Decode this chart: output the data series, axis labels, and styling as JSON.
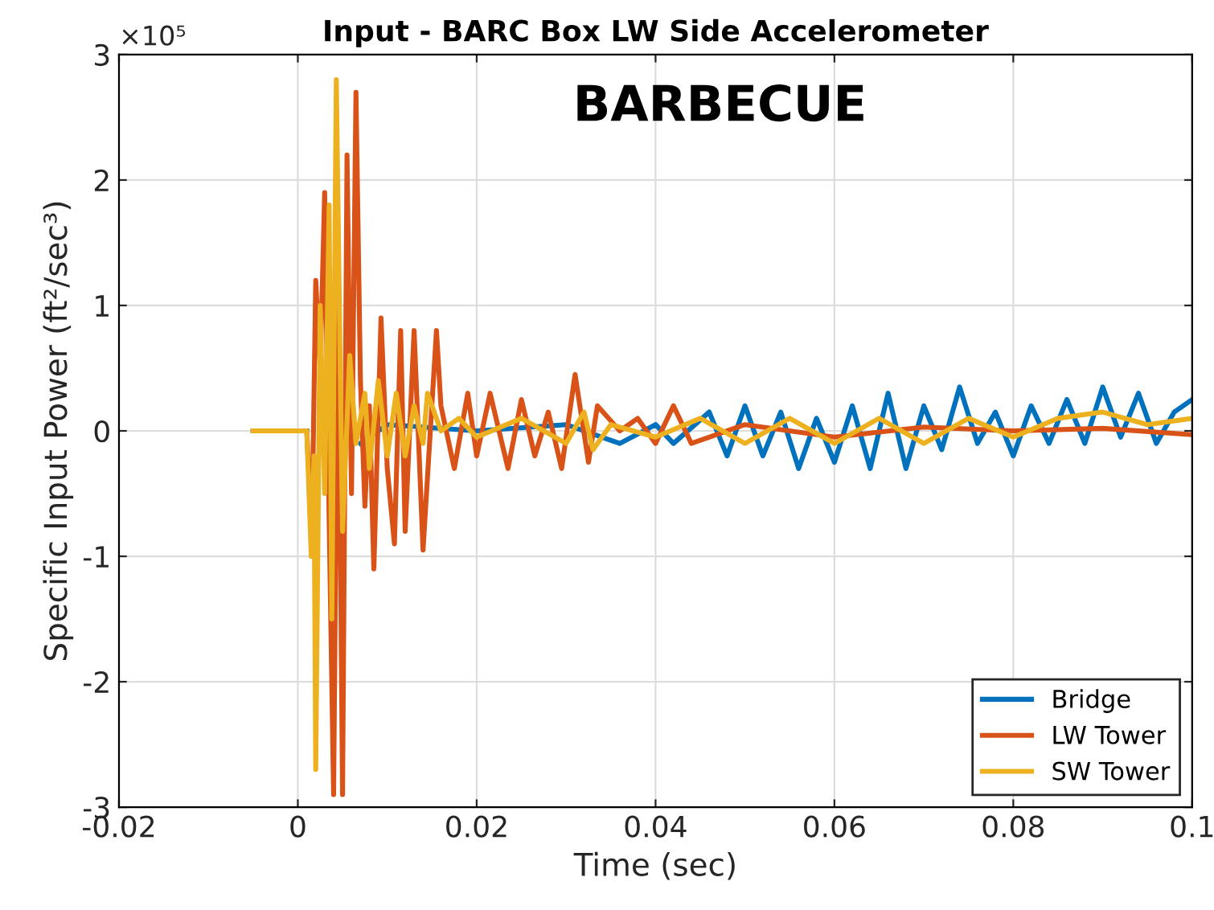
{
  "chart_data": {
    "type": "line",
    "title": "Input - BARC Box LW Side Accelerometer",
    "xlabel": "Time (sec)",
    "ylabel": "Specific Input Power (ft²/sec³)",
    "annotations": [
      "×10⁵",
      "BARBECUE"
    ],
    "xlim": [
      -0.02,
      0.1
    ],
    "xticks": [
      -0.02,
      0,
      0.02,
      0.04,
      0.06,
      0.08,
      0.1
    ],
    "ylim": [
      -3,
      3
    ],
    "yticks": [
      -3,
      -2,
      -1,
      0,
      1,
      2,
      3
    ],
    "grid": true,
    "legend": "bottom right",
    "marker": "none",
    "line_style": "solid",
    "series": [
      {
        "name": "Bridge",
        "color": "#0072bd",
        "x": [
          -0.005,
          0.001,
          0.0015,
          0.003,
          0.005,
          0.007,
          0.01,
          0.02,
          0.03,
          0.036,
          0.04,
          0.042,
          0.046,
          0.048,
          0.05,
          0.052,
          0.054,
          0.056,
          0.058,
          0.06,
          0.062,
          0.064,
          0.066,
          0.068,
          0.07,
          0.072,
          0.074,
          0.076,
          0.078,
          0.08,
          0.082,
          0.084,
          0.086,
          0.088,
          0.09,
          0.092,
          0.094,
          0.096,
          0.098,
          0.1
        ],
        "values": [
          0,
          0,
          null,
          null,
          null,
          -0.1,
          0.05,
          0,
          0.05,
          -0.1,
          0.05,
          -0.1,
          0.15,
          -0.2,
          0.2,
          -0.2,
          0.15,
          -0.3,
          0.1,
          -0.25,
          0.2,
          -0.3,
          0.3,
          -0.3,
          0.2,
          -0.15,
          0.35,
          -0.1,
          0.15,
          -0.2,
          0.2,
          -0.1,
          0.25,
          -0.1,
          0.35,
          -0.05,
          0.3,
          -0.1,
          0.15,
          0.25
        ]
      },
      {
        "name": "LW Tower",
        "color": "#d95319",
        "x": [
          -0.005,
          0.001,
          0.0012,
          0.0016,
          0.002,
          0.0025,
          0.003,
          0.0035,
          0.004,
          0.0045,
          0.005,
          0.0055,
          0.006,
          0.0065,
          0.007,
          0.0075,
          0.008,
          0.0085,
          0.0093,
          0.01,
          0.0108,
          0.0115,
          0.012,
          0.013,
          0.014,
          0.0155,
          0.016,
          0.0175,
          0.019,
          0.02,
          0.0215,
          0.0235,
          0.025,
          0.0265,
          0.028,
          0.0295,
          0.031,
          0.0325,
          0.0335,
          0.036,
          0.038,
          0.04,
          0.042,
          0.044,
          0.05,
          0.06,
          0.07,
          0.08,
          0.09,
          0.1
        ],
        "values": [
          0,
          0,
          -0.3,
          -0.7,
          1.2,
          0.5,
          1.9,
          -0.7,
          -2.9,
          1.2,
          -2.9,
          2.2,
          -0.5,
          2.7,
          0.4,
          -0.6,
          0.2,
          -1.1,
          0.9,
          -0.3,
          -0.9,
          0.8,
          -0.8,
          0.8,
          -0.95,
          0.8,
          0.2,
          -0.3,
          0.3,
          -0.2,
          0.3,
          -0.3,
          0.25,
          -0.2,
          0.15,
          -0.3,
          0.45,
          -0.25,
          0.2,
          0,
          0.1,
          -0.1,
          0.2,
          -0.1,
          0.05,
          -0.05,
          0.03,
          0,
          0.02,
          -0.03
        ]
      },
      {
        "name": "SW Tower",
        "color": "#edb120",
        "x": [
          -0.005,
          0.001,
          0.0015,
          0.0018,
          0.002,
          0.0025,
          0.003,
          0.0035,
          0.0038,
          0.0043,
          0.0048,
          0.005,
          0.0058,
          0.0065,
          0.0075,
          0.008,
          0.009,
          0.01,
          0.011,
          0.012,
          0.013,
          0.014,
          0.0145,
          0.016,
          0.018,
          0.02,
          0.025,
          0.03,
          0.032,
          0.033,
          0.035,
          0.04,
          0.045,
          0.05,
          0.055,
          0.06,
          0.065,
          0.07,
          0.075,
          0.08,
          0.085,
          0.09,
          0.095,
          0.1
        ],
        "values": [
          0,
          0,
          -1,
          -0.2,
          -2.7,
          1,
          -0.5,
          1.8,
          -1.5,
          2.8,
          0.2,
          -0.8,
          0.6,
          -0.1,
          0.3,
          -0.3,
          0.4,
          -0.2,
          0.3,
          -0.2,
          0.2,
          -0.1,
          0.3,
          0,
          0.1,
          -0.05,
          0.1,
          -0.1,
          0.15,
          -0.15,
          0.05,
          -0.05,
          0.1,
          -0.1,
          0.1,
          -0.1,
          0.1,
          -0.1,
          0.1,
          -0.05,
          0.1,
          0.15,
          0.05,
          0.1
        ]
      }
    ]
  }
}
